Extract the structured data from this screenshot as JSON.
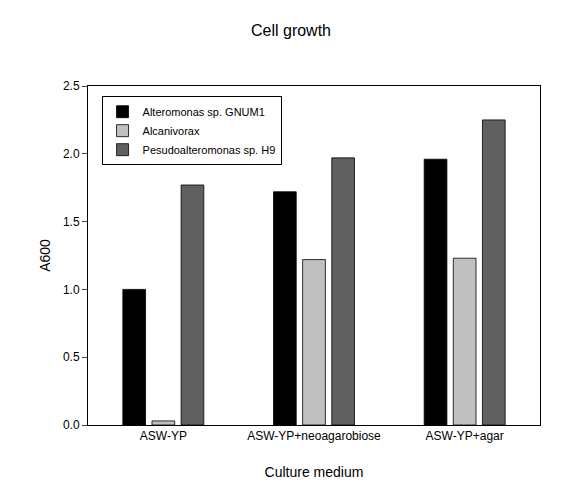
{
  "chart_data": {
    "type": "bar",
    "title": "Cell growth",
    "x_label": "Culture medium",
    "y_label": "A600",
    "categories": [
      "ASW-YP",
      "ASW-YP+neoagarobiose",
      "ASW-YP+agar"
    ],
    "series": [
      {
        "name": "Alteromonas sp. GNUM1",
        "color": "#000000",
        "values": [
          1.0,
          1.72,
          1.96
        ]
      },
      {
        "name": "Alcanivorax",
        "color": "#c0c0c0",
        "values": [
          0.03,
          1.22,
          1.23
        ]
      },
      {
        "name": "Pesudoalteromonas sp. H9",
        "color": "#606060",
        "values": [
          1.77,
          1.97,
          2.25
        ]
      }
    ],
    "ylim": [
      0,
      2.5
    ],
    "yticks": [
      {
        "value": 0,
        "label": "0.0"
      },
      0.5,
      {
        "value": 1,
        "label": "1.0"
      },
      1.5,
      {
        "value": 2,
        "label": "2.0"
      },
      2.5
    ],
    "grid": false,
    "legend": "top left"
  }
}
